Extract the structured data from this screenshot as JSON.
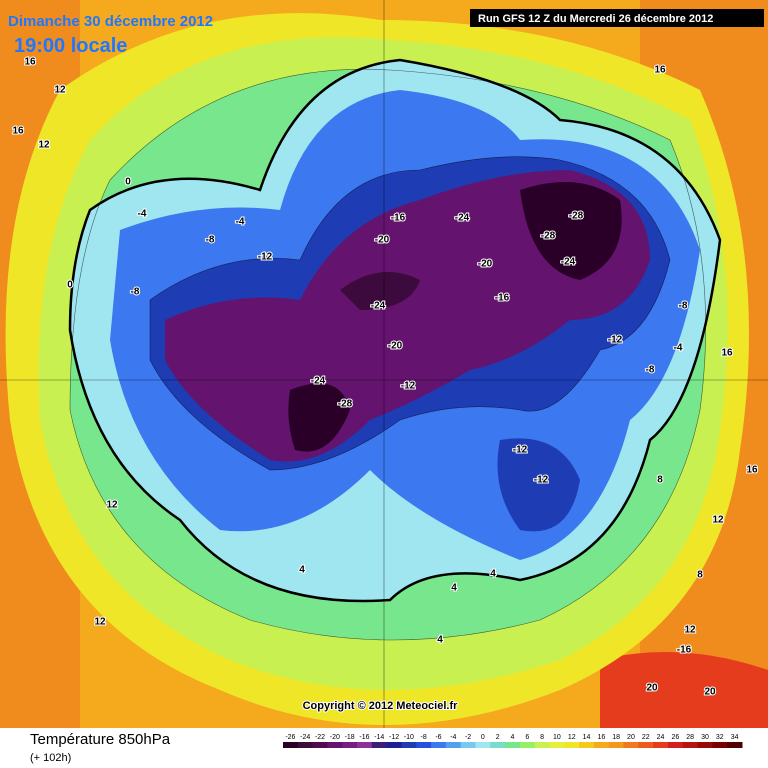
{
  "header": {
    "date": "Dimanche 30 décembre 2012",
    "time": "19:00 locale",
    "run": "Run GFS 12 Z du Mercredi 26 décembre 2012"
  },
  "copyright": "Copyright © 2012 Meteociel.fr",
  "footer": {
    "title": "Température 850hPa",
    "lead": "(+ 102h)"
  },
  "colorbar": {
    "ticks": [
      -26,
      -24,
      -22,
      -20,
      -18,
      -16,
      -14,
      -12,
      -10,
      -8,
      -6,
      -4,
      -2,
      0,
      2,
      4,
      6,
      8,
      10,
      12,
      14,
      16,
      18,
      20,
      22,
      24,
      26,
      28,
      30,
      32,
      34
    ],
    "colors": [
      "#2a0028",
      "#3c0a3c",
      "#500a50",
      "#64146e",
      "#781e82",
      "#8c3296",
      "#3c1e78",
      "#1e1e96",
      "#1e3cb4",
      "#2850dc",
      "#3c78f0",
      "#50a0f0",
      "#78c8f0",
      "#a0e6f0",
      "#78dcc8",
      "#78e68c",
      "#96f064",
      "#c8f050",
      "#e6f03c",
      "#f0e628",
      "#f5c81e",
      "#f5aa1e",
      "#f5961e",
      "#f0781e",
      "#eb5a1e",
      "#e63c1e",
      "#d21e1e",
      "#b41414",
      "#960a0a",
      "#780000",
      "#500000"
    ]
  },
  "contour_labels": [
    "16",
    "12",
    "12",
    "16",
    "12",
    "16",
    "0",
    "-4",
    "-4",
    "-8",
    "-8",
    "-12",
    "-16",
    "-20",
    "-24",
    "-24",
    "-28",
    "-28",
    "-24",
    "-28",
    "-20",
    "-16",
    "-12",
    "-8",
    "-4",
    "0",
    "4",
    "8",
    "12",
    "16",
    "-24",
    "-20",
    "-12",
    "-12",
    "-12",
    "-8",
    "4",
    "4",
    "8",
    "12",
    "12",
    "-16",
    "20",
    "20",
    "16",
    "4"
  ]
}
